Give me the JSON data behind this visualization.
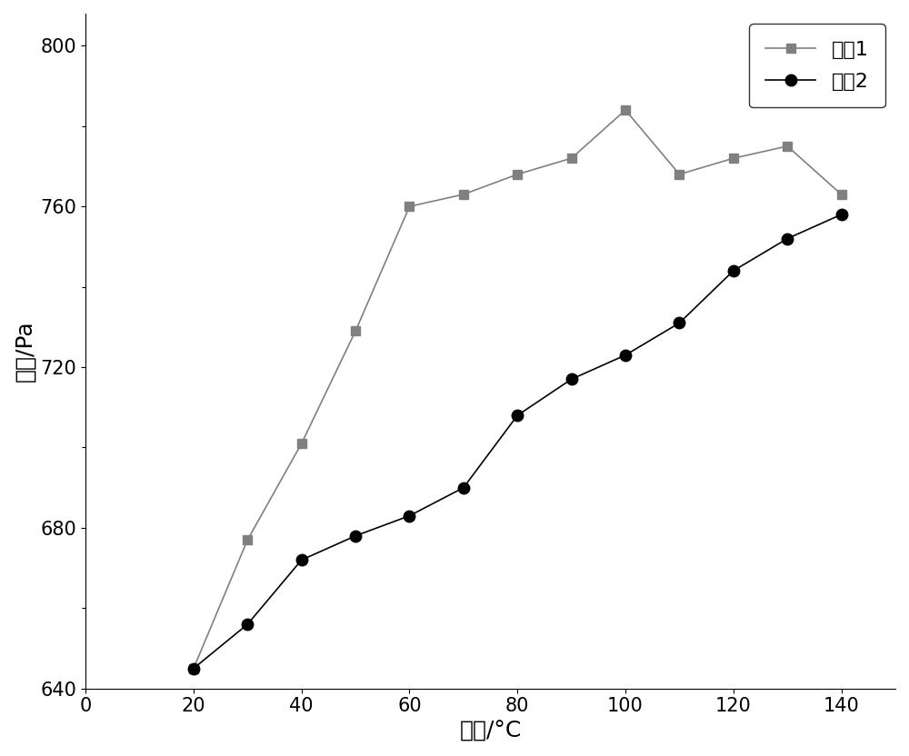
{
  "curve1_x": [
    20,
    30,
    40,
    50,
    60,
    70,
    80,
    90,
    100,
    110,
    120,
    130,
    140
  ],
  "curve1_y": [
    645,
    677,
    701,
    729,
    760,
    763,
    768,
    772,
    784,
    768,
    772,
    775,
    763
  ],
  "curve2_x": [
    20,
    30,
    40,
    50,
    60,
    70,
    80,
    90,
    100,
    110,
    120,
    130,
    140
  ],
  "curve2_y": [
    645,
    656,
    672,
    678,
    683,
    690,
    708,
    717,
    723,
    731,
    744,
    752,
    758
  ],
  "curve1_color": "#808080",
  "curve2_color": "#000000",
  "xlabel": "温度/°C",
  "ylabel": "压力/Pa",
  "legend1": "曲线1",
  "legend2": "曲线2",
  "xlim": [
    0,
    150
  ],
  "ylim": [
    640,
    808
  ],
  "xticks": [
    0,
    20,
    40,
    60,
    80,
    100,
    120,
    140
  ],
  "yticks_major": [
    640,
    680,
    720,
    760,
    800
  ],
  "yticks_minor": [
    640,
    660,
    680,
    700,
    720,
    740,
    760,
    780,
    800
  ],
  "background_color": "#ffffff",
  "marker1": "s",
  "marker2": "o",
  "markersize1": 7,
  "markersize2": 9,
  "linewidth": 1.2,
  "fontsize_label": 18,
  "fontsize_tick": 15,
  "fontsize_legend": 16
}
